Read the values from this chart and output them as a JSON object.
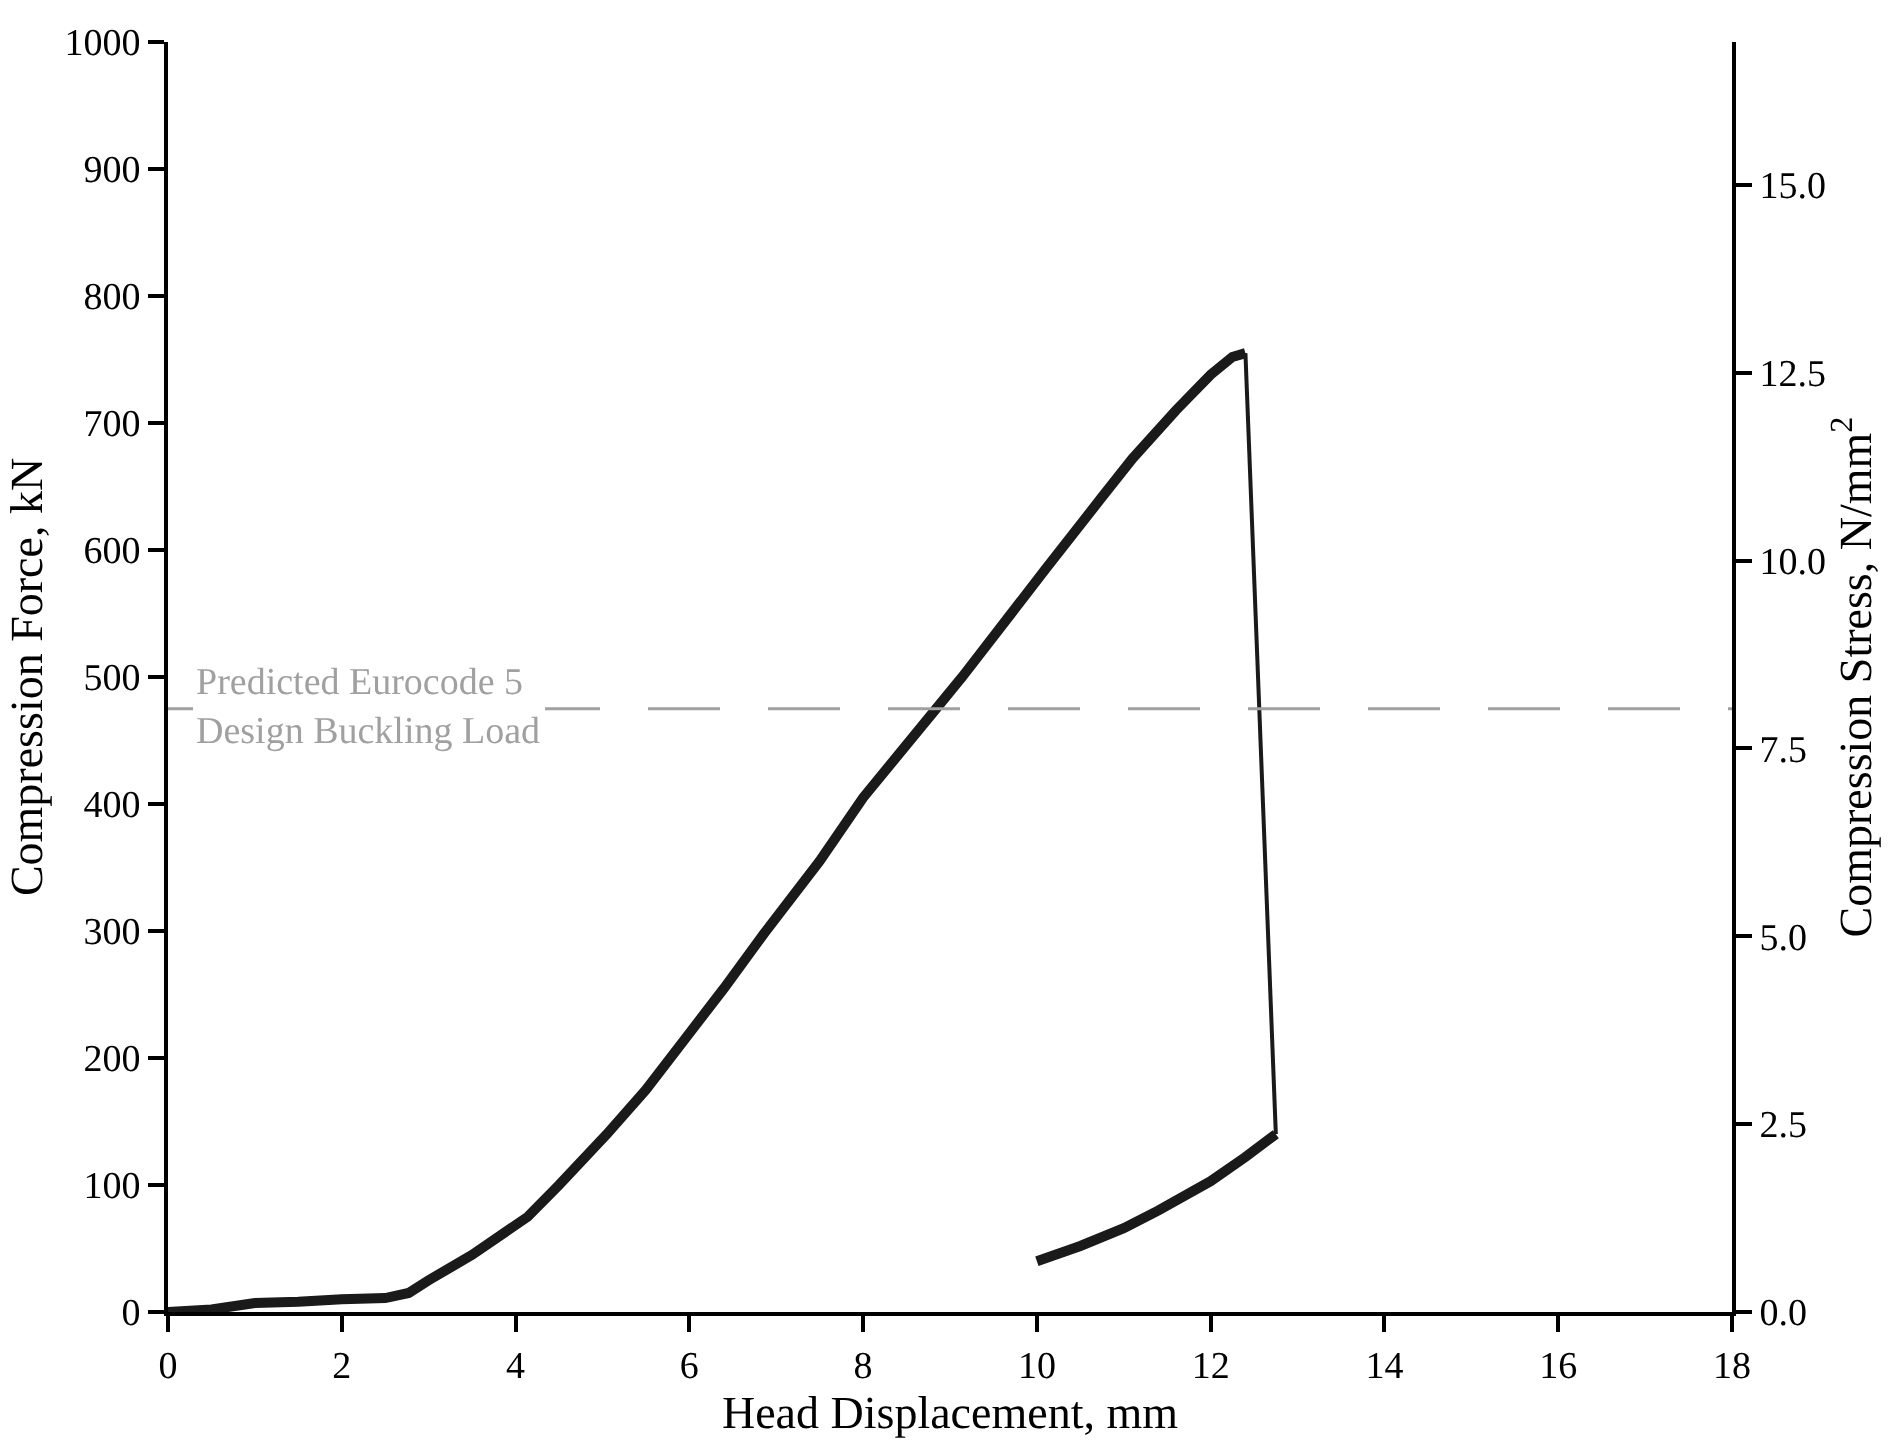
{
  "chart_data": {
    "type": "line",
    "xlabel": "Head Displacement, mm",
    "ylabel": "Compression Force, kN",
    "y2label": "Compression Stress, N/mm$^{2}$",
    "series": [
      {
        "color": "#1a1a1a",
        "x": [
          0,
          0.5,
          1.0,
          1.5,
          2.0,
          2.5,
          2.77,
          3.0,
          3.5,
          4.14,
          4.5,
          5.05,
          5.5,
          5.95,
          6.4,
          6.86,
          7.5,
          8.0,
          8.84,
          9.14,
          10.1,
          10.73,
          11.1,
          11.6,
          12.0,
          12.25,
          12.4
        ],
        "values": [
          0,
          2,
          7,
          8,
          10,
          11,
          15,
          25,
          45,
          75,
          100,
          140,
          175,
          215,
          255,
          298,
          355,
          405,
          475,
          500,
          585,
          640,
          672,
          710,
          738,
          752,
          755
        ]
      },
      {
        "color": "#1a1a1a",
        "x": [
          12.4,
          12.75
        ],
        "values": [
          755,
          140
        ]
      },
      {
        "color": "#1a1a1a",
        "x": [
          10.0,
          10.5,
          11.0,
          11.4,
          12.0,
          12.4,
          12.75
        ],
        "values": [
          40,
          52,
          66,
          80,
          103,
          122,
          140
        ]
      }
    ],
    "xlim": [
      0,
      18
    ],
    "xticks": [
      0,
      2,
      4,
      6,
      8,
      10,
      12,
      14,
      16,
      18
    ],
    "ylim": [
      0,
      1000
    ],
    "yticks": [
      0,
      100,
      200,
      300,
      400,
      500,
      600,
      700,
      800,
      900,
      1000
    ],
    "y2lim": [
      0,
      16.9
    ],
    "y2ticks": [
      {
        "value": 0,
        "label": "0.0"
      },
      2.5,
      {
        "value": 5,
        "label": "5.0"
      },
      7.5,
      {
        "value": 10,
        "label": "10.0"
      },
      12.5,
      {
        "value": 15,
        "label": "15.0"
      }
    ],
    "ref_lines": [
      {
        "axis": "y",
        "value": 475,
        "label": "Predicted Eurocode 5\nDesign Buckling Load",
        "color": "#a0a0a0",
        "line_style": "dashed"
      }
    ],
    "marker": "none",
    "line_style": "solid"
  }
}
